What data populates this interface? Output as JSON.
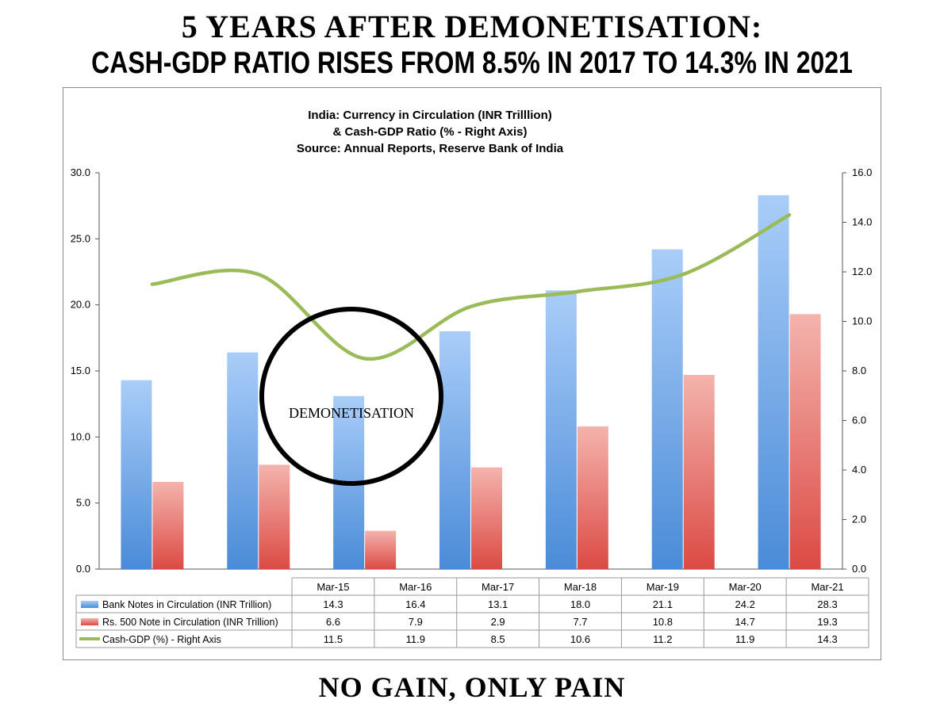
{
  "headline": {
    "line1": "5 YEARS AFTER DEMONETISATION:",
    "line2": "CASH-GDP RATIO RISES FROM 8.5% IN 2017 TO 14.3% IN 2021"
  },
  "footer": "NO GAIN, ONLY PAIN",
  "annotation": "DEMONETISATION",
  "colors": {
    "bank_notes": "#5b9be0",
    "rs500": "#e06060",
    "cash_gdp": "#9bbb59",
    "circle": "#000000"
  },
  "chart_data": {
    "type": "bar",
    "title_lines": [
      "India: Currency in Circulation (INR Trilllion)",
      "& Cash-GDP Ratio (% - Right Axis)",
      "Source: Annual Reports, Reserve Bank of India"
    ],
    "categories": [
      "Mar-15",
      "Mar-16",
      "Mar-17",
      "Mar-18",
      "Mar-19",
      "Mar-20",
      "Mar-21"
    ],
    "series": [
      {
        "name": "Bank Notes in Circulation (INR Trillion)",
        "kind": "bar",
        "axis": "left",
        "values": [
          "14.3",
          "16.4",
          "13.1",
          "18.0",
          "21.1",
          "24.2",
          "28.3"
        ]
      },
      {
        "name": "Rs. 500 Note in Circulation (INR Trillion)",
        "kind": "bar",
        "axis": "left",
        "values": [
          "6.6",
          "7.9",
          "2.9",
          "7.7",
          "10.8",
          "14.7",
          "19.3"
        ]
      },
      {
        "name": "Cash-GDP (%) - Right Axis",
        "kind": "line",
        "axis": "right",
        "values": [
          "11.5",
          "11.9",
          "8.5",
          "10.6",
          "11.2",
          "11.9",
          "14.3"
        ]
      }
    ],
    "left_axis": {
      "ticks": [
        "0.0",
        "5.0",
        "10.0",
        "15.0",
        "20.0",
        "25.0",
        "30.0"
      ],
      "range": [
        0,
        30
      ]
    },
    "right_axis": {
      "ticks": [
        "0.0",
        "2.0",
        "4.0",
        "6.0",
        "8.0",
        "10.0",
        "12.0",
        "14.0",
        "16.0"
      ],
      "range": [
        0,
        16
      ]
    },
    "grid": false,
    "legend": "data-table"
  }
}
